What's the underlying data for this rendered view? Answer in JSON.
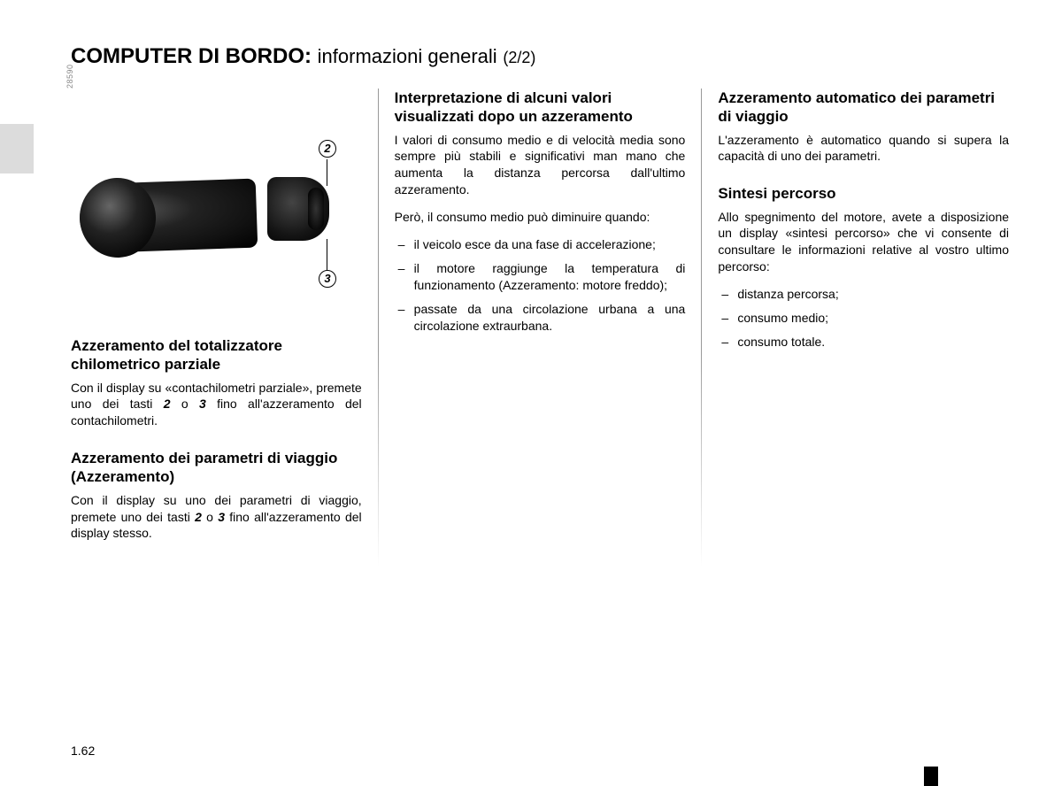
{
  "title": {
    "main": "COMPUTER DI BORDO:",
    "sub": "informazioni generali",
    "paren": "(2/2)"
  },
  "figure": {
    "code": "28590",
    "callouts": {
      "c2": "2",
      "c3": "3"
    }
  },
  "col1": {
    "s1": {
      "heading": "Azzeramento del totalizzatore chilometrico parziale",
      "p1a": "Con il display su «contachilometri parziale», premete uno dei tasti ",
      "p1b": " o ",
      "p1c": " fino all'azzeramento del contachilometri.",
      "n2": "2",
      "n3": "3"
    },
    "s2": {
      "heading": "Azzeramento dei parametri di viaggio (Azzeramento)",
      "p1a": "Con il display su uno dei parametri di viaggio, premete uno dei tasti ",
      "p1b": " o ",
      "p1c": " fino all'azzeramento del display stesso.",
      "n2": "2",
      "n3": "3"
    }
  },
  "col2": {
    "s1": {
      "heading": "Interpretazione di alcuni valori visualizzati dopo un azzeramento",
      "p1": "I valori di consumo medio e di velocità media sono sempre più stabili e significativi man mano che aumenta la distanza percorsa dall'ultimo azzeramento.",
      "p2": "Però, il consumo medio può diminuire quando:",
      "li1": "il veicolo esce da una fase di accelerazione;",
      "li2": "il motore raggiunge la temperatura di funzionamento (Azzeramento: motore freddo);",
      "li3": "passate da una circolazione urbana a una circolazione extraurbana."
    }
  },
  "col3": {
    "s1": {
      "heading": "Azzeramento automatico dei parametri di viaggio",
      "p1": "L'azzeramento è automatico quando si supera la capacità di uno dei parametri."
    },
    "s2": {
      "heading": "Sintesi percorso",
      "p1": "Allo spegnimento del motore, avete a disposizione un display «sintesi percorso» che vi consente di consultare le informazioni relative al vostro ultimo percorso:",
      "li1": "distanza percorsa;",
      "li2": "consumo medio;",
      "li3": "consumo totale."
    }
  },
  "pageNumber": "1.62"
}
